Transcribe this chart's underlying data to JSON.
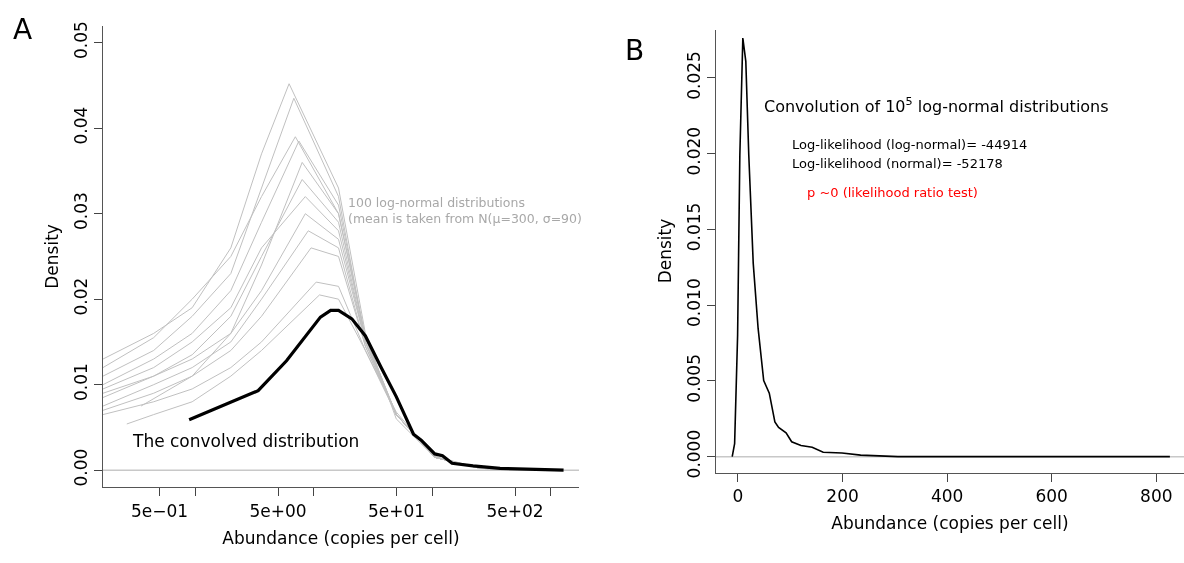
{
  "chart_data": [
    {
      "type": "line",
      "title": "A",
      "xlabel": "Abundance (copies per cell)",
      "ylabel": "Density",
      "log": "x",
      "grid": false,
      "xlim": [
        0.167,
        1730
      ],
      "ylim": [
        -0.002,
        0.052
      ],
      "xticks": [
        {
          "value": 0.5,
          "label": "5e−01"
        },
        {
          "value": 1,
          "label": null
        },
        {
          "value": 5,
          "label": "5e+00"
        },
        {
          "value": 10,
          "label": null
        },
        {
          "value": 50,
          "label": "5e+01"
        },
        {
          "value": 100,
          "label": null
        },
        {
          "value": 500,
          "label": "5e+02"
        },
        {
          "value": 1000,
          "label": null
        }
      ],
      "yticks": [
        {
          "value": 0,
          "label": "0.00"
        },
        {
          "value": 0.01,
          "label": "0.01"
        },
        {
          "value": 0.02,
          "label": "0.02"
        },
        {
          "value": 0.03,
          "label": "0.03"
        },
        {
          "value": 0.04,
          "label": "0.04"
        },
        {
          "value": 0.05,
          "label": "0.05"
        }
      ],
      "ref_lines": [
        {
          "axis": "y",
          "value": 0,
          "color": "#c8c8c8"
        }
      ],
      "annotations": [
        "100 log-normal distributions\n(mean is taken from N(μ=300, σ=90)",
        "The convolved distribution"
      ],
      "series": [
        {
          "color": "#c0c0c0",
          "x": [
            0.167,
            0.447,
            0.944,
            2.0,
            3.63,
            6.2,
            16.2,
            27.3,
            49.7,
            105,
            257,
            1236
          ],
          "values": [
            0.013,
            0.016,
            0.019,
            0.026,
            0.037,
            0.0452,
            0.033,
            0.016,
            0.006,
            0.0015,
            0.0002,
            0
          ]
        },
        {
          "color": "#c0c0c0",
          "x": [
            0.167,
            0.447,
            0.944,
            2.0,
            3.63,
            6.8,
            16.2,
            27.3,
            49.7,
            105,
            257,
            1236
          ],
          "values": [
            0.011,
            0.014,
            0.018,
            0.023,
            0.033,
            0.0435,
            0.032,
            0.015,
            0.0065,
            0.0016,
            0.0002,
            0
          ]
        },
        {
          "color": "#c0c0c0",
          "x": [
            0.167,
            0.447,
            0.944,
            2.0,
            3.63,
            7.5,
            16.2,
            27.3,
            49.7,
            105,
            257,
            1236
          ],
          "values": [
            0.01,
            0.013,
            0.016,
            0.021,
            0.029,
            0.0385,
            0.031,
            0.0155,
            0.0065,
            0.0016,
            0.0002,
            0
          ]
        },
        {
          "color": "#c0c0c0",
          "x": [
            0.167,
            0.447,
            0.944,
            2.0,
            3.63,
            7.0,
            16.2,
            27.3,
            49.7,
            105,
            257,
            1236
          ],
          "values": [
            0.012,
            0.0155,
            0.02,
            0.025,
            0.032,
            0.039,
            0.03,
            0.0155,
            0.0065,
            0.0015,
            0.0002,
            0
          ]
        },
        {
          "color": "#c0c0c0",
          "x": [
            0.167,
            0.447,
            0.944,
            2.0,
            3.63,
            8.0,
            16.2,
            27.3,
            49.7,
            105,
            257,
            1236
          ],
          "values": [
            0.0085,
            0.011,
            0.0135,
            0.018,
            0.025,
            0.034,
            0.029,
            0.015,
            0.0065,
            0.0015,
            0.0002,
            0
          ]
        },
        {
          "color": "#c0c0c0",
          "x": [
            0.167,
            0.447,
            0.944,
            2.0,
            3.63,
            8.5,
            16.2,
            27.3,
            49.7,
            105,
            257,
            1236
          ],
          "values": [
            0.0095,
            0.012,
            0.015,
            0.019,
            0.026,
            0.032,
            0.028,
            0.015,
            0.0065,
            0.0015,
            0.0002,
            0
          ]
        },
        {
          "color": "#c0c0c0",
          "x": [
            0.167,
            0.447,
            0.944,
            2.0,
            3.63,
            8.5,
            16.2,
            27.3,
            49.7,
            105,
            257,
            1236
          ],
          "values": [
            0.009,
            0.011,
            0.013,
            0.016,
            0.021,
            0.03,
            0.027,
            0.015,
            0.0065,
            0.0015,
            0.0002,
            0
          ]
        },
        {
          "color": "#c0c0c0",
          "x": [
            0.167,
            0.447,
            0.944,
            2.0,
            3.63,
            9.0,
            16.2,
            27.3,
            49.7,
            105,
            257,
            1236
          ],
          "values": [
            0.0075,
            0.01,
            0.012,
            0.015,
            0.02,
            0.028,
            0.026,
            0.0145,
            0.0065,
            0.0015,
            0.0002,
            0
          ]
        },
        {
          "color": "#c0c0c0",
          "x": [
            0.167,
            0.447,
            0.944,
            2.0,
            3.63,
            9.5,
            16.2,
            27.3,
            49.7,
            105,
            257,
            1236
          ],
          "values": [
            0.007,
            0.009,
            0.011,
            0.014,
            0.018,
            0.026,
            0.025,
            0.0145,
            0.0065,
            0.0015,
            0.0002,
            0
          ]
        },
        {
          "color": "#c0c0c0",
          "x": [
            0.167,
            0.447,
            0.944,
            2.0,
            3.63,
            10.5,
            16.2,
            27.3,
            49.7,
            105,
            257,
            1236
          ],
          "values": [
            0.0065,
            0.008,
            0.0095,
            0.012,
            0.015,
            0.022,
            0.0215,
            0.014,
            0.0065,
            0.0015,
            0.0002,
            0
          ]
        },
        {
          "color": "#c0c0c0",
          "x": [
            0.35,
            0.944,
            2.0,
            3.63,
            8.0,
            16.2,
            27.3,
            49.7,
            105,
            257,
            1236
          ],
          "values": [
            0.0075,
            0.011,
            0.016,
            0.024,
            0.036,
            0.03,
            0.0155,
            0.0065,
            0.0015,
            0.0002,
            0
          ]
        },
        {
          "color": "#c0c0c0",
          "x": [
            0.265,
            0.447,
            0.944,
            2.0,
            3.63,
            11.2,
            16.2,
            27.3,
            49.7,
            105,
            257,
            1236
          ],
          "values": [
            0.0054,
            0.0065,
            0.008,
            0.011,
            0.014,
            0.0205,
            0.02,
            0.014,
            0.0068,
            0.0015,
            0.0002,
            0
          ]
        },
        {
          "color": "#000000",
          "x": [
            0.89,
            3.4,
            5.9,
            11.4,
            13.9,
            16.2,
            21,
            27.3,
            36.8,
            49.7,
            69.5,
            80.7,
            105,
            122,
            147,
            221,
            373,
            1282
          ],
          "values": [
            0.0059,
            0.0093,
            0.0128,
            0.0179,
            0.0187,
            0.0187,
            0.0177,
            0.0157,
            0.0121,
            0.0086,
            0.0042,
            0.0035,
            0.0019,
            0.0017,
            0.0008,
            0.0005,
            0.0002,
            0
          ]
        }
      ]
    },
    {
      "type": "line",
      "title": "B",
      "xlabel": "Abundance (copies per cell)",
      "ylabel": "Density",
      "grid": false,
      "xlim": [
        -42,
        853
      ],
      "ylim": [
        -0.00105,
        0.0282
      ],
      "xticks": [
        0,
        200,
        400,
        600,
        800
      ],
      "yticks": [
        {
          "value": 0,
          "label": "0.000"
        },
        {
          "value": 0.005,
          "label": "0.005"
        },
        {
          "value": 0.01,
          "label": "0.010"
        },
        {
          "value": 0.015,
          "label": "0.015"
        },
        {
          "value": 0.02,
          "label": "0.020"
        },
        {
          "value": 0.025,
          "label": "0.025"
        }
      ],
      "ref_lines": [
        {
          "axis": "y",
          "value": 0,
          "color": "#c8c8c8"
        }
      ],
      "annotations": [
        "Convolution of 10$^{5}$ log-normal distributions",
        "Log-likelihood (log-normal)= -44914",
        "Log-likelihood (normal)= -52178",
        "p ~0 (likelihood ratio test)"
      ],
      "series": [
        {
          "color": "#000000",
          "x": [
            -11,
            -6.4,
            -0.7,
            3.6,
            9.3,
            15,
            20.7,
            29.2,
            38.5,
            49.2,
            59.9,
            70.6,
            77.7,
            92,
            102.7,
            120.5,
            141.9,
            163,
            199,
            234.6,
            306,
            448,
            826
          ],
          "values": [
            0,
            0.00086,
            0.008,
            0.0199,
            0.02764,
            0.0261,
            0.0199,
            0.01276,
            0.00848,
            0.00502,
            0.00419,
            0.00229,
            0.00193,
            0.00157,
            0.00098,
            0.00074,
            0.00062,
            0.00029,
            0.00024,
            0.0001,
            0,
            0,
            0
          ]
        }
      ]
    }
  ]
}
